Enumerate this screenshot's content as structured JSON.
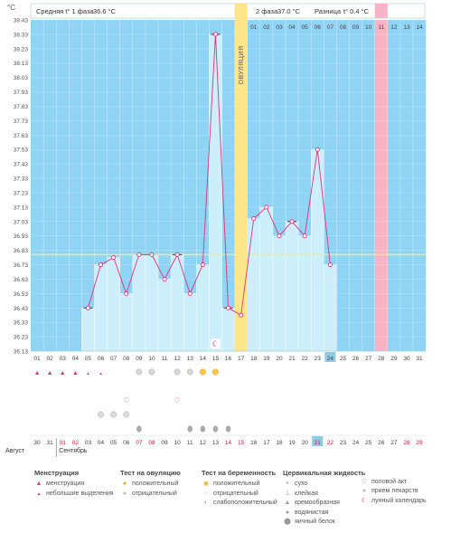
{
  "header": {
    "unit": "°C",
    "phase1_label": "Средняя t° 1 фаза",
    "phase1_value": "36.6 °C",
    "phase2_label": "2 фаза",
    "phase2_value": "37.0 °C",
    "diff_label": "Разница",
    "diff_value": "t° 0.4 °C"
  },
  "ovulation_label": "ОВУЛЯЦИЯ",
  "colors": {
    "sky": "#8fd3f5",
    "bar": "#cdeefb",
    "line": "#e0337a",
    "ovulation": "#fde58a",
    "mens_day": "#f9b3c6",
    "today": "#8fcbe6",
    "baseline": "#f2e98c"
  },
  "chart_data": {
    "type": "line",
    "y_ticks": [
      "38.43",
      "38.33",
      "38.23",
      "38.13",
      "38.03",
      "37.93",
      "37.83",
      "37.73",
      "37.63",
      "37.53",
      "37.43",
      "37.33",
      "37.23",
      "37.13",
      "37.03",
      "36.93",
      "36.83",
      "36.73",
      "36.63",
      "36.53",
      "36.43",
      "36.33",
      "36.23",
      "36.13"
    ],
    "ylim": [
      36.13,
      38.43
    ],
    "baseline": 36.8,
    "cycle_days": [
      "01",
      "02",
      "03",
      "04",
      "05",
      "06",
      "07",
      "08",
      "09",
      "10",
      "11",
      "12",
      "13",
      "14",
      "15",
      "16",
      "17",
      "18",
      "19",
      "20",
      "21",
      "22",
      "23",
      "24",
      "25",
      "26",
      "27",
      "28",
      "29",
      "30",
      "31"
    ],
    "dates": [
      "30",
      "31",
      "01",
      "02",
      "03",
      "04",
      "05",
      "06",
      "07",
      "08",
      "09",
      "10",
      "11",
      "12",
      "13",
      "14",
      "15",
      "16",
      "17",
      "18",
      "19",
      "20",
      "21",
      "22",
      "23",
      "24",
      "25",
      "26",
      "27",
      "28",
      "29"
    ],
    "months": [
      "Август",
      "Сентябрь"
    ],
    "after_ovulation_days": [
      "01",
      "02",
      "03",
      "04",
      "05",
      "06",
      "07",
      "08",
      "09",
      "10",
      "11",
      "12",
      "13",
      "14"
    ],
    "ovulation_day": 17,
    "today": 24,
    "mens_day": 28,
    "temps": [
      null,
      null,
      null,
      null,
      36.43,
      36.73,
      36.78,
      36.53,
      36.8,
      36.8,
      36.63,
      36.8,
      36.53,
      36.73,
      38.33,
      36.43,
      36.38,
      37.05,
      37.13,
      36.93,
      37.03,
      36.93,
      37.53,
      36.73,
      null,
      null,
      null,
      null,
      null,
      null,
      null
    ],
    "black_marks": [
      5,
      12,
      15,
      16,
      21
    ]
  },
  "legend": {
    "mens": {
      "title": "Менструация",
      "items": [
        "менструация",
        "небольшие выделения"
      ]
    },
    "ovtest": {
      "title": "Тест на овуляцию",
      "items": [
        "положительный",
        "отрицательный"
      ]
    },
    "pregtest": {
      "title": "Тест на беременность",
      "items": [
        "положительный",
        "отрицательный",
        "слабоположительный"
      ]
    },
    "fluid": {
      "title": "Цервикальная жидкость",
      "items": [
        "сухо",
        "клейкая",
        "кремообразная",
        "водянистая",
        "яичный белок"
      ]
    },
    "other": {
      "items": [
        "половой акт",
        "прием лекарств",
        "лунный календарь"
      ]
    }
  }
}
